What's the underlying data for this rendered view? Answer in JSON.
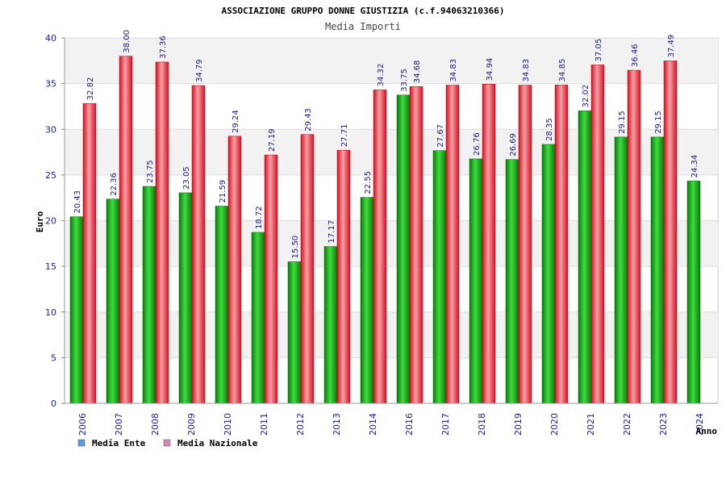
{
  "chart_data": {
    "type": "bar",
    "title": "ASSOCIAZIONE GRUPPO DONNE GIUSTIZIA (c.f.94063210366)",
    "subtitle": "Media Importi",
    "xlabel": "Anno",
    "ylabel": "Euro",
    "ylim": [
      0,
      40
    ],
    "yticks": [
      0,
      5,
      10,
      15,
      20,
      25,
      30,
      35,
      40
    ],
    "grid": true,
    "legend_position": "bottom-left",
    "categories": [
      "2006",
      "2007",
      "2008",
      "2009",
      "2010",
      "2011",
      "2012",
      "2013",
      "2014",
      "2016",
      "2017",
      "2018",
      "2019",
      "2020",
      "2021",
      "2022",
      "2023",
      "2024"
    ],
    "series": [
      {
        "name": "Media Ente",
        "color": "#1aa01a",
        "legend_color": "#5a9be6",
        "values": [
          20.43,
          22.36,
          23.75,
          23.05,
          21.59,
          18.72,
          15.5,
          17.17,
          22.55,
          33.75,
          27.67,
          26.76,
          26.69,
          28.35,
          32.02,
          29.15,
          29.15,
          24.34
        ],
        "labels": [
          "20.43",
          "22.36",
          "23.75",
          "23.05",
          "21.59",
          "18.72",
          "15.50",
          "17.17",
          "22.55",
          "33.75",
          "27.67",
          "26.76",
          "26.69",
          "28.35",
          "32.02",
          "29.15",
          "29.15",
          "24.34"
        ]
      },
      {
        "name": "Media Nazionale",
        "color": "#e8202a",
        "legend_color": "#d687b8",
        "values": [
          32.82,
          38.0,
          37.36,
          34.79,
          29.24,
          27.19,
          29.43,
          27.71,
          34.32,
          34.68,
          34.83,
          34.94,
          34.83,
          34.85,
          37.05,
          36.46,
          37.49,
          null
        ],
        "labels": [
          "32.82",
          "38.00",
          "37.36",
          "34.79",
          "29.24",
          "27.19",
          "29.43",
          "27.71",
          "34.32",
          "34.68",
          "34.83",
          "34.94",
          "34.83",
          "34.85",
          "37.05",
          "36.46",
          "37.49",
          ""
        ]
      }
    ]
  }
}
